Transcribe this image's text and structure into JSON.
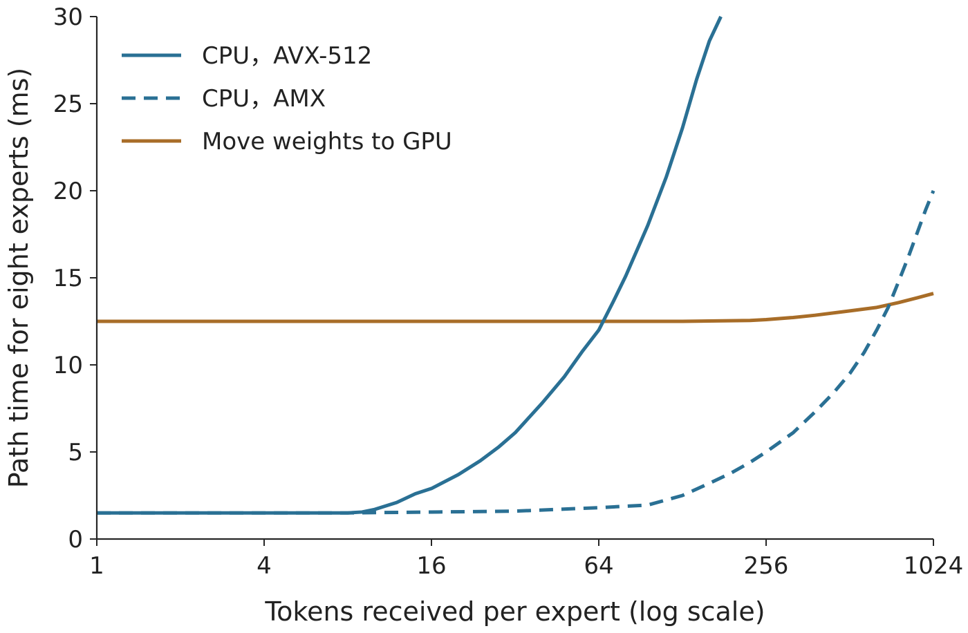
{
  "chart_data": {
    "type": "line",
    "title": "",
    "xlabel": "Tokens received per expert (log scale)",
    "ylabel": "Path time for eight experts (ms)",
    "x_scale": "log2",
    "xlim": [
      1,
      1024
    ],
    "ylim": [
      0,
      30
    ],
    "x_ticks": [
      1,
      4,
      16,
      64,
      256,
      1024
    ],
    "x_tick_labels": [
      "1",
      "4",
      "16",
      "64",
      "256",
      "1024"
    ],
    "y_ticks": [
      0,
      5,
      10,
      15,
      20,
      25,
      30
    ],
    "y_tick_labels": [
      "0",
      "5",
      "10",
      "15",
      "20",
      "25",
      "30"
    ],
    "grid": false,
    "legend_position": "top-left",
    "series": [
      {
        "name": "CPU，AVX-512",
        "color": "#2a7094",
        "dash": "solid",
        "points": [
          [
            1,
            1.5
          ],
          [
            2,
            1.5
          ],
          [
            4,
            1.5
          ],
          [
            8,
            1.5
          ],
          [
            9,
            1.55
          ],
          [
            10,
            1.7
          ],
          [
            12,
            2.1
          ],
          [
            14,
            2.6
          ],
          [
            16,
            2.9
          ],
          [
            20,
            3.7
          ],
          [
            24,
            4.5
          ],
          [
            28,
            5.3
          ],
          [
            32,
            6.1
          ],
          [
            40,
            7.8
          ],
          [
            48,
            9.3
          ],
          [
            56,
            10.8
          ],
          [
            64,
            12.0
          ],
          [
            72,
            13.6
          ],
          [
            80,
            15.1
          ],
          [
            96,
            18.0
          ],
          [
            112,
            20.8
          ],
          [
            128,
            23.6
          ],
          [
            144,
            26.4
          ],
          [
            160,
            28.6
          ],
          [
            176,
            30.0
          ]
        ]
      },
      {
        "name": "CPU，AMX",
        "color": "#2a7094",
        "dash": "dashed",
        "points": [
          [
            1,
            1.5
          ],
          [
            8,
            1.5
          ],
          [
            16,
            1.55
          ],
          [
            32,
            1.6
          ],
          [
            64,
            1.8
          ],
          [
            96,
            1.95
          ],
          [
            128,
            2.5
          ],
          [
            160,
            3.2
          ],
          [
            192,
            3.8
          ],
          [
            224,
            4.4
          ],
          [
            256,
            5.0
          ],
          [
            320,
            6.1
          ],
          [
            384,
            7.3
          ],
          [
            448,
            8.4
          ],
          [
            512,
            9.5
          ],
          [
            576,
            10.7
          ],
          [
            640,
            12.0
          ],
          [
            704,
            13.3
          ],
          [
            768,
            14.8
          ],
          [
            832,
            16.2
          ],
          [
            896,
            17.6
          ],
          [
            960,
            18.9
          ],
          [
            1024,
            20.0
          ]
        ]
      },
      {
        "name": "Move weights to GPU",
        "color": "#a86d28",
        "dash": "solid",
        "points": [
          [
            1,
            12.5
          ],
          [
            16,
            12.5
          ],
          [
            64,
            12.5
          ],
          [
            128,
            12.5
          ],
          [
            224,
            12.55
          ],
          [
            256,
            12.6
          ],
          [
            320,
            12.72
          ],
          [
            384,
            12.85
          ],
          [
            512,
            13.1
          ],
          [
            640,
            13.3
          ],
          [
            768,
            13.58
          ],
          [
            896,
            13.85
          ],
          [
            1024,
            14.1
          ]
        ]
      }
    ]
  }
}
